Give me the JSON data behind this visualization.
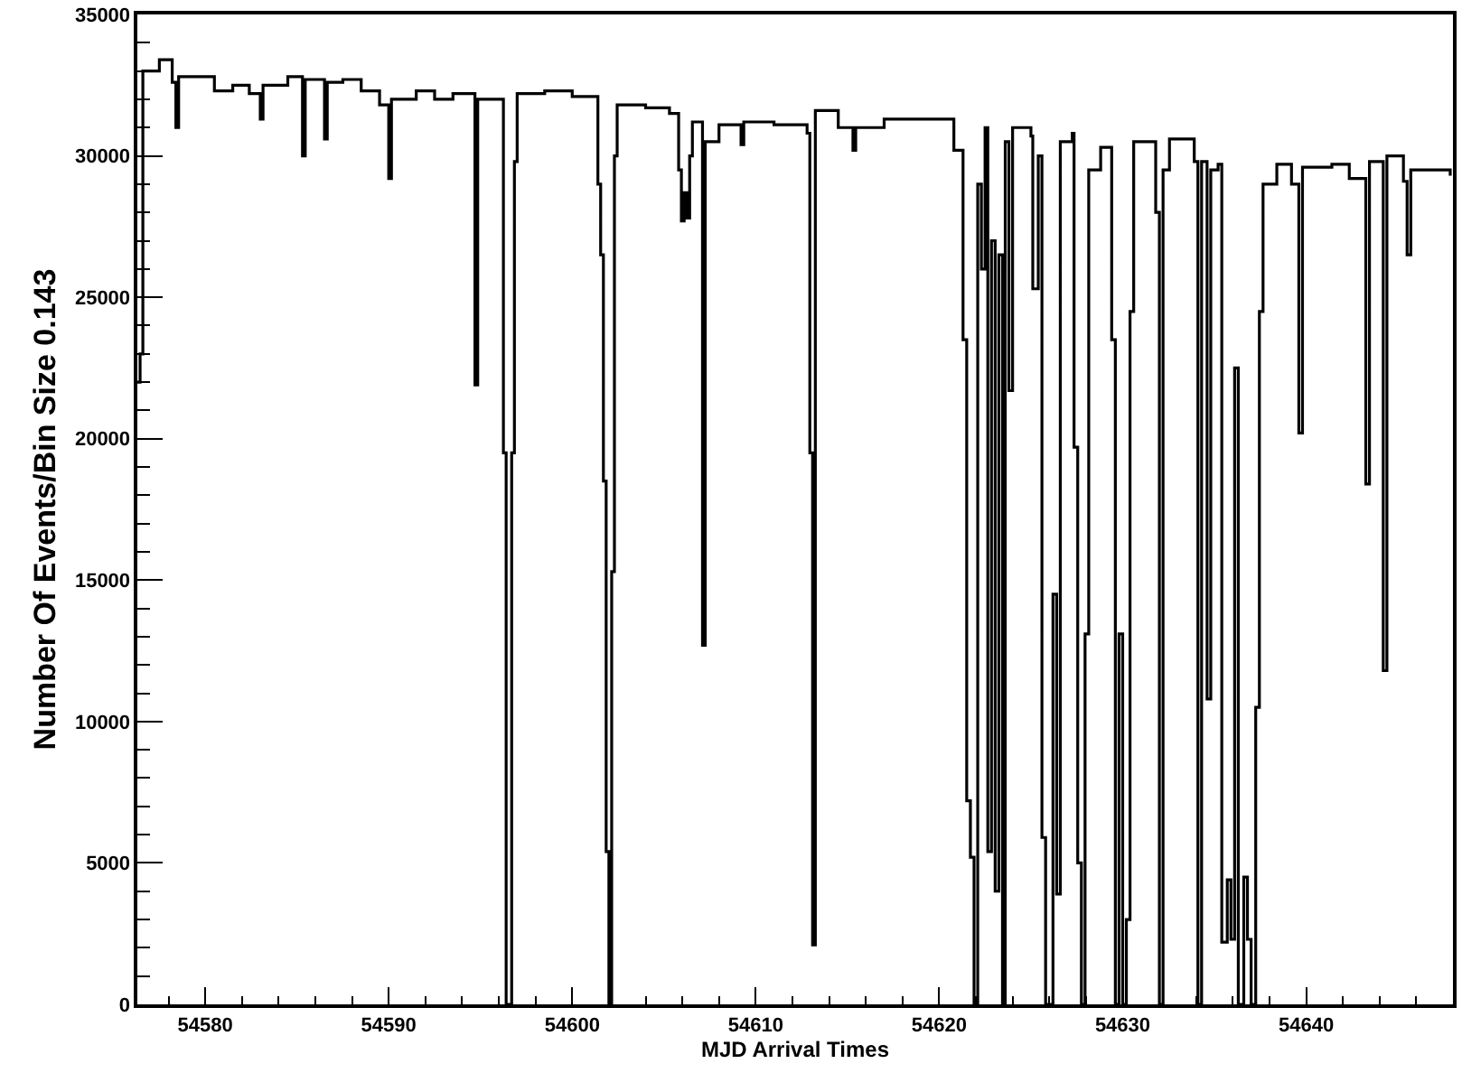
{
  "chart_data": {
    "type": "step",
    "xlabel": "MJD Arrival Times",
    "ylabel": "Number Of Events/Bin Size 0.143",
    "xlim": [
      54576.3,
      54648
    ],
    "xticks": [
      54580,
      54590,
      54600,
      54610,
      54620,
      54630,
      54640
    ],
    "ylim": [
      0,
      35000
    ],
    "yticks": [
      0,
      5000,
      10000,
      15000,
      20000,
      25000,
      30000,
      35000
    ],
    "marker": "none",
    "line_style": "solid",
    "series": [
      {
        "color": "#000000",
        "x": [
          54576.3,
          54576.45,
          54576.6,
          54577.5,
          54578.2,
          54578.4,
          54578.55,
          54579.5,
          54580.5,
          54581.5,
          54582.4,
          54583,
          54583.15,
          54584.5,
          54585.3,
          54585.45,
          54586.5,
          54586.65,
          54587.5,
          54588.5,
          54589.5,
          54590,
          54590.15,
          54591.5,
          54592.5,
          54593.5,
          54594.7,
          54594.85,
          54596.1,
          54596.25,
          54596.4,
          54596.7,
          54596.85,
          54597,
          54598.5,
          54600,
          54601.4,
          54601.55,
          54601.7,
          54601.85,
          54602,
          54602.15,
          54602.3,
          54602.45,
          54604,
          54605.3,
          54605.8,
          54605.95,
          54606.1,
          54606.25,
          54606.4,
          54606.55,
          54607.1,
          54607.25,
          54608,
          54609.2,
          54609.35,
          54611,
          54612.8,
          54612.95,
          54613.1,
          54613.25,
          54614.5,
          54615.3,
          54615.45,
          54617,
          54619,
          54620.8,
          54621.3,
          54621.5,
          54621.7,
          54621.9,
          54622.1,
          54622.3,
          54622.5,
          54622.65,
          54622.85,
          54623.05,
          54623.25,
          54623.45,
          54623.6,
          54623.8,
          54624.0,
          54625.0,
          54625.1,
          54625.4,
          54625.6,
          54625.8,
          54626.2,
          54626.4,
          54626.6,
          54627.25,
          54627.35,
          54627.55,
          54627.75,
          54627.95,
          54628.15,
          54628.8,
          54629.4,
          54629.6,
          54629.8,
          54630.0,
          54630.2,
          54630.4,
          54630.6,
          54631.8,
          54632.0,
          54632.2,
          54632.55,
          54633.9,
          54634.1,
          54634.3,
          54634.6,
          54634.8,
          54635.2,
          54635.4,
          54635.7,
          54635.9,
          54636.1,
          54636.3,
          54636.6,
          54636.8,
          54637.0,
          54637.25,
          54637.45,
          54637.65,
          54638.4,
          54639.2,
          54639.6,
          54639.8,
          54641.4,
          54642.35,
          54643.25,
          54643.45,
          54644.2,
          54644.4,
          54645.3,
          54645.5,
          54645.7,
          54647.85
        ],
        "values": [
          22000,
          23000,
          33000,
          33400,
          32600,
          31000,
          32800,
          32800,
          32300,
          32500,
          32200,
          31300,
          32500,
          32800,
          30000,
          32700,
          30600,
          32600,
          32700,
          32300,
          31800,
          29200,
          32000,
          32300,
          32000,
          32200,
          21900,
          32000,
          32000,
          19500,
          0,
          19500,
          29800,
          32200,
          32300,
          32100,
          29000,
          26500,
          18500,
          5400,
          0,
          15300,
          30000,
          31800,
          31700,
          31500,
          29500,
          27700,
          28700,
          27800,
          30000,
          31200,
          12700,
          30500,
          31100,
          30400,
          31200,
          31100,
          30800,
          19500,
          2100,
          31600,
          31000,
          30200,
          31000,
          31300,
          31300,
          30200,
          23500,
          7200,
          5200,
          0,
          29000,
          26000,
          31000,
          5400,
          27000,
          4000,
          26500,
          0,
          30500,
          21700,
          31000,
          30700,
          25300,
          30000,
          5900,
          0,
          14500,
          3900,
          30500,
          30800,
          19700,
          5000,
          0,
          13100,
          29500,
          30300,
          23500,
          0,
          13100,
          0,
          3000,
          24500,
          30500,
          28000,
          0,
          29500,
          30600,
          29800,
          0,
          29800,
          10800,
          29500,
          29700,
          2200,
          4400,
          2300,
          22500,
          0,
          4500,
          2300,
          0,
          10500,
          24500,
          29000,
          29700,
          29000,
          20200,
          29600,
          29700,
          29200,
          18400,
          29800,
          11800,
          30000,
          29100,
          26500,
          29500,
          29300
        ]
      }
    ]
  }
}
